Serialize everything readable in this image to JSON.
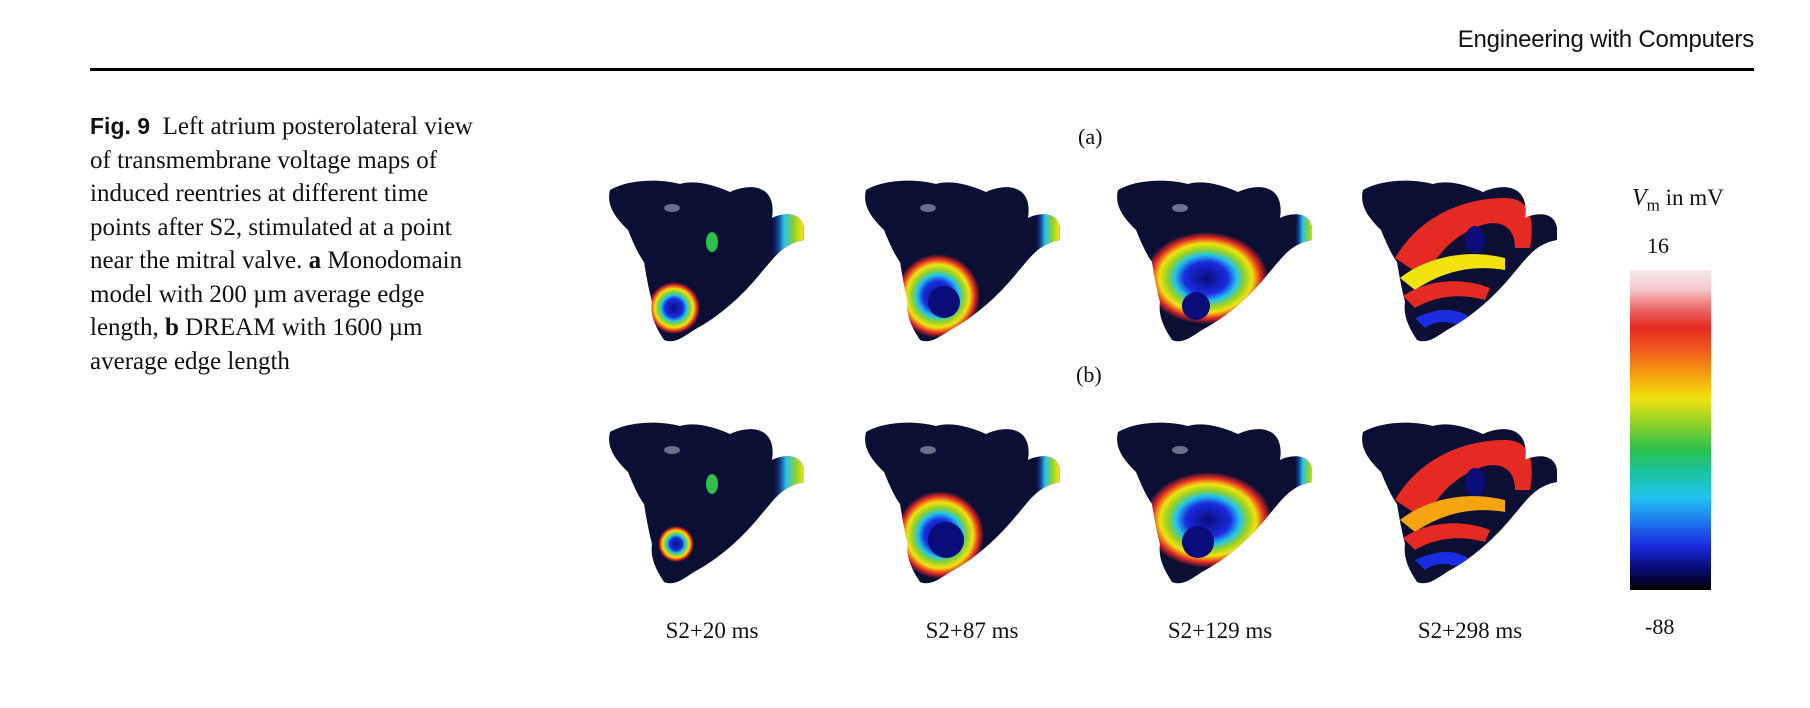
{
  "header": {
    "journal": "Engineering with Computers"
  },
  "caption": {
    "label": "Fig. 9",
    "text_1": "Left atrium posterolateral view of transmembrane voltage maps of induced reentries at different time points after S2, stimulated at a point near the mitral valve.",
    "bold_a": "a",
    "text_2": "Monodomain model with 200 µm average edge length,",
    "bold_b": "b",
    "text_3": "DREAM with 1600 µm average edge length"
  },
  "panels": {
    "row_a": "(a)",
    "row_b": "(b)",
    "times": [
      "S2+20 ms",
      "S2+87 ms",
      "S2+129 ms",
      "S2+298 ms"
    ]
  },
  "colorbar": {
    "symbol": "V",
    "subscript": "m",
    "unit": "in mV",
    "max": "16",
    "min": "-88"
  },
  "colors": {
    "background": "#ffffff",
    "tissue": "#0b0f33",
    "text": "#111111"
  }
}
